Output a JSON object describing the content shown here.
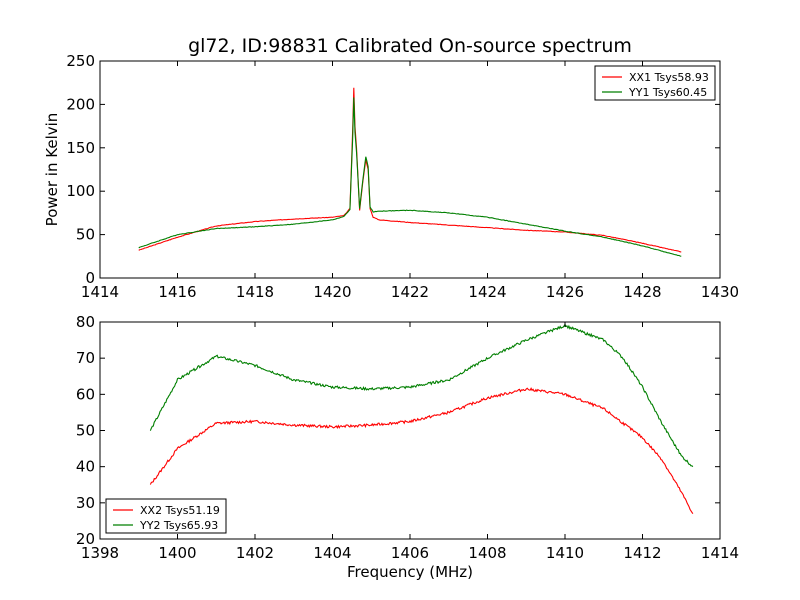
{
  "title": "gl72, ID:98831 Calibrated On-source spectrum",
  "colors": {
    "red": "#ff0000",
    "green": "#007f00"
  },
  "chart_data": [
    {
      "type": "line",
      "ylabel": "Power in Kelvin",
      "xlabel": "",
      "xlim": [
        1414,
        1430
      ],
      "ylim": [
        0,
        250
      ],
      "xticks": [
        "1414",
        "1416",
        "1418",
        "1420",
        "1422",
        "1424",
        "1426",
        "1428",
        "1430"
      ],
      "yticks": [
        "0",
        "50",
        "100",
        "150",
        "200",
        "250"
      ],
      "legend_position": "top-right",
      "series": [
        {
          "name": "XX1 Tsys58.93",
          "color": "#ff0000",
          "x": [
            1415.0,
            1416.0,
            1417.0,
            1418.0,
            1419.0,
            1420.0,
            1420.3,
            1420.45,
            1420.52,
            1420.55,
            1420.58,
            1420.62,
            1420.7,
            1420.78,
            1420.86,
            1420.92,
            1420.97,
            1421.05,
            1421.2,
            1422.0,
            1423.0,
            1424.0,
            1425.0,
            1426.0,
            1427.0,
            1428.0,
            1429.0
          ],
          "y": [
            32,
            47,
            60,
            65,
            68,
            70,
            72,
            80,
            170,
            219,
            175,
            150,
            78,
            110,
            136,
            125,
            80,
            70,
            67,
            64,
            61,
            58,
            55,
            53,
            49,
            40,
            30
          ]
        },
        {
          "name": "YY1 Tsys60.45",
          "color": "#007f00",
          "x": [
            1415.0,
            1416.0,
            1417.0,
            1418.0,
            1419.0,
            1420.0,
            1420.3,
            1420.45,
            1420.52,
            1420.55,
            1420.58,
            1420.62,
            1420.7,
            1420.78,
            1420.86,
            1420.92,
            1420.97,
            1421.05,
            1421.2,
            1422.0,
            1423.0,
            1424.0,
            1425.0,
            1426.0,
            1427.0,
            1428.0,
            1429.0
          ],
          "y": [
            35,
            50,
            57,
            59,
            62,
            67,
            71,
            79,
            160,
            208,
            168,
            145,
            80,
            112,
            140,
            128,
            82,
            76,
            77,
            78,
            75,
            70,
            62,
            54,
            47,
            37,
            25
          ]
        }
      ]
    },
    {
      "type": "line",
      "ylabel": "",
      "xlabel": "Frequency (MHz)",
      "xlim": [
        1398,
        1414
      ],
      "ylim": [
        20,
        80
      ],
      "xticks": [
        "1398",
        "1400",
        "1402",
        "1404",
        "1406",
        "1408",
        "1410",
        "1412",
        "1414"
      ],
      "yticks": [
        "20",
        "30",
        "40",
        "50",
        "60",
        "70",
        "80"
      ],
      "legend_position": "bottom-left",
      "series": [
        {
          "name": "XX2 Tsys51.19",
          "color": "#ff0000",
          "x": [
            1399.3,
            1400.0,
            1401.0,
            1402.0,
            1403.0,
            1404.0,
            1405.0,
            1406.0,
            1407.0,
            1408.0,
            1409.0,
            1410.0,
            1411.0,
            1412.0,
            1412.5,
            1413.0,
            1413.3
          ],
          "y": [
            35,
            45,
            52,
            52.5,
            51.5,
            51,
            51.5,
            52.5,
            55,
            59,
            61.5,
            60,
            56,
            48,
            42,
            33,
            27
          ]
        },
        {
          "name": "YY2 Tsys65.93",
          "color": "#007f00",
          "x": [
            1399.3,
            1400.0,
            1401.0,
            1402.0,
            1403.0,
            1404.0,
            1405.0,
            1406.0,
            1407.0,
            1408.0,
            1409.0,
            1410.0,
            1411.0,
            1411.5,
            1412.0,
            1412.5,
            1413.0,
            1413.3
          ],
          "y": [
            50,
            64,
            70.5,
            68,
            64,
            62,
            61.5,
            62,
            64,
            70,
            75,
            79,
            75,
            70,
            62,
            52,
            43,
            40
          ]
        }
      ]
    }
  ]
}
